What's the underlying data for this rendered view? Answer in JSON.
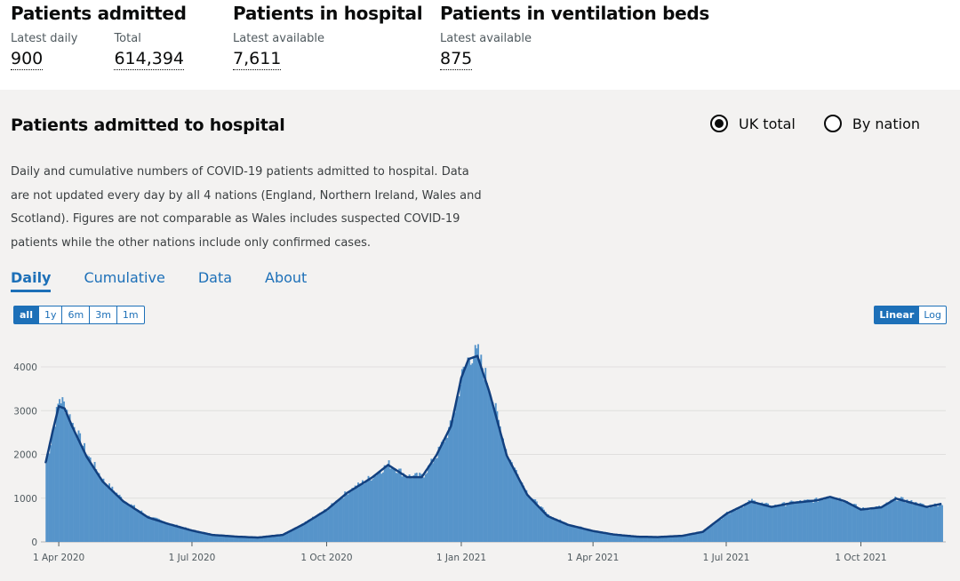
{
  "summary": [
    {
      "title": "Patients admitted",
      "metrics": [
        {
          "label": "Latest daily",
          "value": "900"
        },
        {
          "label": "Total",
          "value": "614,394"
        }
      ]
    },
    {
      "title": "Patients in hospital",
      "metrics": [
        {
          "label": "Latest available",
          "value": "7,611"
        }
      ]
    },
    {
      "title": "Patients in ventilation beds",
      "metrics": [
        {
          "label": "Latest available",
          "value": "875"
        }
      ]
    }
  ],
  "card": {
    "title": "Patients admitted to hospital",
    "radios": [
      {
        "label": "UK total",
        "checked": true
      },
      {
        "label": "By nation",
        "checked": false
      }
    ],
    "description": "Daily and cumulative numbers of COVID-19 patients admitted to hospital. Data are not updated every day by all 4 nations (England, Northern Ireland, Wales and Scotland). Figures are not comparable as Wales includes suspected COVID-19 patients while the other nations include only confirmed cases.",
    "tabs": [
      "Daily",
      "Cumulative",
      "Data",
      "About"
    ],
    "active_tab": "Daily",
    "range_buttons": [
      "all",
      "1y",
      "6m",
      "3m",
      "1m"
    ],
    "active_range": "all",
    "scale_buttons": [
      "Linear",
      "Log"
    ],
    "active_scale": "Linear"
  },
  "colors": {
    "bar": "#5694ca",
    "line": "#12407f",
    "accent": "#1d70b8"
  },
  "chart_data": {
    "type": "bar",
    "x_labels": [
      "1 Apr 2020",
      "1 Jul 2020",
      "1 Oct 2020",
      "1 Jan 2021",
      "1 Apr 2021",
      "1 Jul 2021",
      "1 Oct 2021"
    ],
    "y_ticks": [
      0,
      1000,
      2000,
      3000,
      4000
    ],
    "ylim": [
      0,
      4600
    ],
    "grid": true,
    "series": [
      {
        "style": "bars",
        "x": [
          "2020-03-23",
          "2020-03-28",
          "2020-04-01",
          "2020-04-05",
          "2020-04-10",
          "2020-04-20",
          "2020-05-01",
          "2020-05-15",
          "2020-06-01",
          "2020-06-15",
          "2020-07-01",
          "2020-07-15",
          "2020-08-01",
          "2020-08-15",
          "2020-09-01",
          "2020-09-15",
          "2020-10-01",
          "2020-10-15",
          "2020-11-01",
          "2020-11-12",
          "2020-11-25",
          "2020-12-05",
          "2020-12-15",
          "2020-12-25",
          "2021-01-01",
          "2021-01-06",
          "2021-01-12",
          "2021-01-20",
          "2021-02-01",
          "2021-02-15",
          "2021-03-01",
          "2021-03-15",
          "2021-04-01",
          "2021-04-15",
          "2021-05-01",
          "2021-05-15",
          "2021-06-01",
          "2021-06-15",
          "2021-07-01",
          "2021-07-18",
          "2021-08-01",
          "2021-08-15",
          "2021-09-01",
          "2021-09-10",
          "2021-09-20",
          "2021-10-01",
          "2021-10-15",
          "2021-10-25",
          "2021-11-05",
          "2021-11-15",
          "2021-11-25"
        ],
        "y": [
          1800,
          2600,
          3300,
          3100,
          2700,
          2000,
          1400,
          950,
          580,
          420,
          270,
          170,
          130,
          110,
          170,
          420,
          750,
          1150,
          1500,
          1780,
          1500,
          1500,
          2000,
          2700,
          3800,
          4250,
          4300,
          3500,
          2000,
          1100,
          600,
          400,
          260,
          180,
          130,
          120,
          150,
          240,
          650,
          940,
          810,
          900,
          960,
          1050,
          940,
          750,
          800,
          1000,
          900,
          810,
          880
        ]
      },
      {
        "style": "line",
        "name": "",
        "x": [
          "2020-03-23",
          "2020-03-28",
          "2020-04-01",
          "2020-04-05",
          "2020-04-10",
          "2020-04-20",
          "2020-05-01",
          "2020-05-15",
          "2020-06-01",
          "2020-06-15",
          "2020-07-01",
          "2020-07-15",
          "2020-08-01",
          "2020-08-15",
          "2020-09-01",
          "2020-09-15",
          "2020-10-01",
          "2020-10-15",
          "2020-11-01",
          "2020-11-12",
          "2020-11-25",
          "2020-12-05",
          "2020-12-15",
          "2020-12-25",
          "2021-01-01",
          "2021-01-06",
          "2021-01-12",
          "2021-01-20",
          "2021-02-01",
          "2021-02-15",
          "2021-03-01",
          "2021-03-15",
          "2021-04-01",
          "2021-04-15",
          "2021-05-01",
          "2021-05-15",
          "2021-06-01",
          "2021-06-15",
          "2021-07-01",
          "2021-07-18",
          "2021-08-01",
          "2021-08-15",
          "2021-09-01",
          "2021-09-10",
          "2021-09-20",
          "2021-10-01",
          "2021-10-15",
          "2021-10-25",
          "2021-11-05",
          "2021-11-15",
          "2021-11-25"
        ],
        "y": [
          1800,
          2550,
          3100,
          3050,
          2650,
          1950,
          1380,
          930,
          560,
          410,
          260,
          160,
          120,
          100,
          160,
          400,
          730,
          1120,
          1470,
          1760,
          1480,
          1480,
          1980,
          2650,
          3750,
          4180,
          4250,
          3450,
          1980,
          1080,
          590,
          390,
          250,
          170,
          120,
          110,
          140,
          230,
          640,
          920,
          800,
          890,
          950,
          1030,
          930,
          740,
          790,
          990,
          890,
          800,
          870
        ]
      }
    ]
  }
}
